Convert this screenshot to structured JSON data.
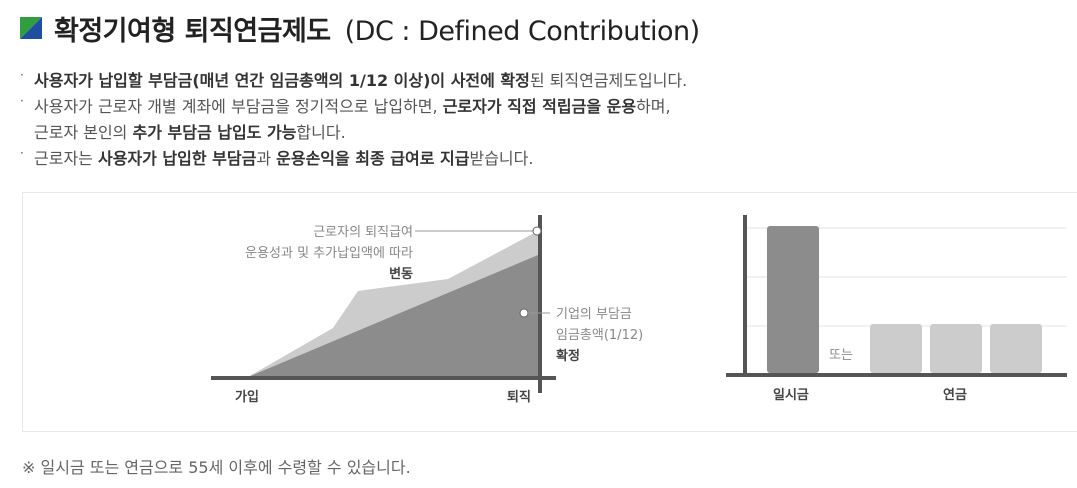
{
  "title": {
    "main": "확정기여형 퇴직연금제도",
    "sub": "(DC : Defined Contribution)"
  },
  "bullets": [
    {
      "parts": [
        {
          "text": "사용자가 납입할 부담금(매년 연간 임금총액의 1/12 이상)이 사전에 확정",
          "bold": true
        },
        {
          "text": "된 퇴직연금제도입니다.",
          "bold": false
        }
      ]
    },
    {
      "line1": [
        {
          "text": "사용자가 근로자 개별 계좌에 부담금을 정기적으로 납입하면, ",
          "bold": false
        },
        {
          "text": "근로자가 직접 적립금을 운용",
          "bold": true
        },
        {
          "text": "하며,",
          "bold": false
        }
      ],
      "line2": [
        {
          "text": "근로자 본인의 ",
          "bold": false
        },
        {
          "text": "추가 부담금 납입도 가능",
          "bold": true
        },
        {
          "text": "합니다.",
          "bold": false
        }
      ]
    },
    {
      "parts": [
        {
          "text": "근로자는 ",
          "bold": false
        },
        {
          "text": "사용자가 납입한 부담금",
          "bold": true
        },
        {
          "text": "과 ",
          "bold": false
        },
        {
          "text": "운용손익을 최종 급여로 지급",
          "bold": true
        },
        {
          "text": "받습니다.",
          "bold": false
        }
      ]
    }
  ],
  "diagram": {
    "left": {
      "worker_label_line1": "근로자의 퇴직급여",
      "worker_label_line2": "운용성과 및 추가납입액에 따라",
      "worker_label_bold": "변동",
      "company_label_line1": "기업의 부담금",
      "company_label_line2": "임금총액(1/12)",
      "company_label_bold": "확정",
      "x_start": "가입",
      "x_end": "퇴직"
    },
    "right": {
      "lump_label": "일시금",
      "or_label": "또는",
      "annuity_label": "연금",
      "lump_value": 1.0,
      "annuity_values": [
        0.33,
        0.33,
        0.33
      ]
    }
  },
  "colors": {
    "icon_green": "#2e9e3e",
    "icon_blue": "#1e4fa0",
    "area_light": "#cccccc",
    "area_dark": "#8c8c8c",
    "axis": "#555555",
    "bar_dark": "#8c8c8c",
    "bar_light": "#cccccc"
  },
  "note": "※ 일시금 또는 연금으로 55세 이후에 수령할 수 있습니다."
}
